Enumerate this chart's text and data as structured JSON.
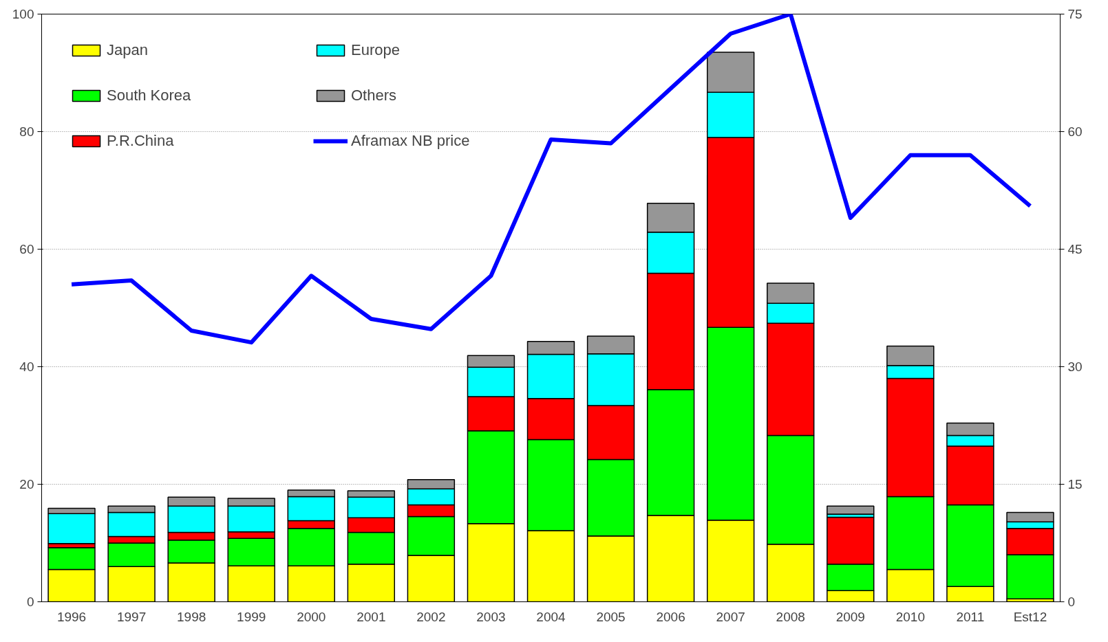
{
  "chart_data": {
    "type": "bar",
    "stacked": true,
    "categories": [
      "1996",
      "1997",
      "1998",
      "1999",
      "2000",
      "2001",
      "2002",
      "2003",
      "2004",
      "2005",
      "2006",
      "2007",
      "2008",
      "2009",
      "2010",
      "2011",
      "Est12"
    ],
    "series": [
      {
        "name": "Japan",
        "color": "#ffff00",
        "values": [
          5.5,
          6.0,
          6.6,
          6.1,
          6.1,
          6.4,
          7.9,
          13.3,
          12.1,
          11.2,
          14.7,
          13.9,
          9.8,
          1.9,
          5.5,
          2.6,
          0.5
        ]
      },
      {
        "name": "South Korea",
        "color": "#00ff00",
        "values": [
          3.7,
          4.0,
          3.9,
          4.7,
          6.4,
          5.4,
          6.6,
          15.8,
          15.5,
          13.0,
          21.4,
          32.8,
          18.5,
          4.5,
          12.4,
          13.9,
          7.5
        ]
      },
      {
        "name": "P.R.China",
        "color": "#ff0000",
        "values": [
          0.7,
          1.1,
          1.3,
          1.1,
          1.3,
          2.5,
          2.0,
          5.8,
          7.0,
          9.2,
          19.8,
          32.3,
          19.1,
          8.0,
          20.1,
          10.0,
          4.5
        ]
      },
      {
        "name": "Europe",
        "color": "#00ffff",
        "values": [
          5.1,
          4.1,
          4.5,
          4.4,
          4.1,
          3.5,
          2.7,
          5.0,
          7.5,
          8.8,
          7.0,
          7.7,
          3.4,
          0.5,
          2.2,
          1.8,
          1.1
        ]
      },
      {
        "name": "Others",
        "color": "#969696",
        "values": [
          0.9,
          1.1,
          1.5,
          1.3,
          1.1,
          1.1,
          1.6,
          2.0,
          2.2,
          3.0,
          4.9,
          6.8,
          3.4,
          1.4,
          3.3,
          2.1,
          1.6
        ]
      },
      {
        "name": "Aframax NB price",
        "type": "line",
        "axis": "y2",
        "color": "#0000ff",
        "values": [
          40.5,
          41.0,
          34.6,
          33.1,
          41.6,
          36.1,
          34.8,
          41.6,
          59.0,
          58.5,
          65.5,
          72.5,
          75.0,
          49.0,
          57.0,
          57.0,
          50.5
        ]
      }
    ],
    "ylim": [
      0,
      100
    ],
    "yticks": [
      0,
      20,
      40,
      60,
      80,
      100
    ],
    "y2lim": [
      0,
      75
    ],
    "y2ticks": [
      0,
      15,
      30,
      45,
      60,
      75
    ],
    "grid": "y",
    "legend": "top left"
  }
}
